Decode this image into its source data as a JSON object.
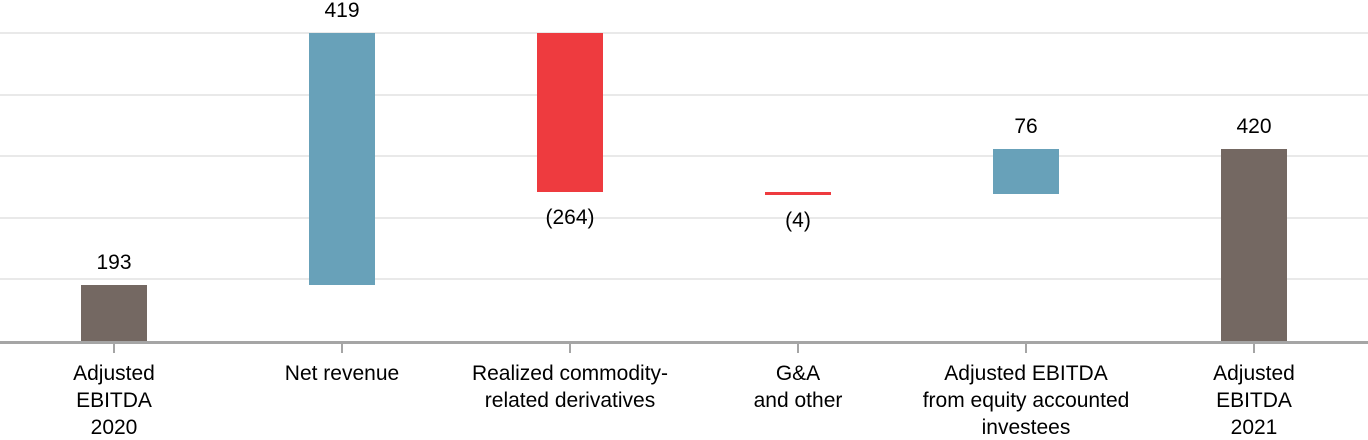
{
  "chart_data": {
    "type": "waterfall",
    "orientation": "vertical",
    "legend": "none",
    "categories": [
      "Adjusted EBITDA 2020",
      "Net revenue",
      "Realized commodity-related derivatives",
      "G&A and other",
      "Adjusted EBITDA from equity accounted investees",
      "Adjusted EBITDA 2021"
    ],
    "bars": [
      {
        "category_lines": [
          "Adjusted",
          "EBITDA",
          "2020"
        ],
        "value": 193,
        "display": "193",
        "kind": "total"
      },
      {
        "category_lines": [
          "Net revenue"
        ],
        "value": 419,
        "display": "419",
        "kind": "increase"
      },
      {
        "category_lines": [
          "Realized commodity-",
          "related derivatives"
        ],
        "value": -264,
        "display": "(264)",
        "kind": "decrease"
      },
      {
        "category_lines": [
          "G&A",
          "and other"
        ],
        "value": -4,
        "display": "(4)",
        "kind": "decrease"
      },
      {
        "category_lines": [
          "Adjusted EBITDA",
          "from equity accounted",
          "investees"
        ],
        "value": 76,
        "display": "76",
        "kind": "increase"
      },
      {
        "category_lines": [
          "Adjusted",
          "EBITDA",
          "2021"
        ],
        "value": 420,
        "display": "420",
        "kind": "total"
      }
    ],
    "running_levels": [
      193,
      612,
      348,
      344,
      420,
      420
    ],
    "axis": {
      "y_min": 100,
      "y_max": 612,
      "gridline_count": 5,
      "x_axis_visible": true,
      "y_tick_labels_visible": false
    },
    "colors": {
      "total": "#746862",
      "increase": "#68a1b9",
      "decrease": "#ee3b3f",
      "gridline": "#e9e9e9",
      "axis_line": "#a5a5a5",
      "tick": "#a5a5a5",
      "label_text": "#000000",
      "background": "#ffffff"
    }
  }
}
